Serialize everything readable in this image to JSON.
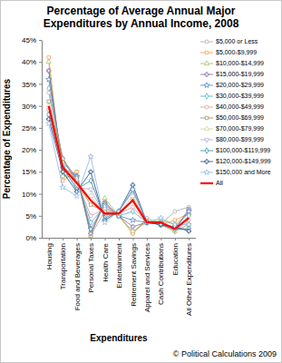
{
  "chart_data": {
    "type": "line",
    "title": "Percentage of Average Annual Major Expenditures by Annual Income, 2008",
    "x_label": "Expenditures",
    "y_label": "Percentage of Expenditures",
    "annotation": "© Political Calculations 2009",
    "categories": [
      "Housing",
      "Transportation",
      "Food and Beverages",
      "Personal Taxes",
      "Health Care",
      "Entertainment",
      "Retirement Savings",
      "Apparel and Services",
      "Cash Contributions",
      "Education",
      "All Other Expenditures"
    ],
    "ylim": [
      0,
      45
    ],
    "yticks": [
      {
        "value": 0,
        "label": "0%"
      },
      {
        "value": 5,
        "label": "5%"
      },
      {
        "value": 10,
        "label": "10%"
      },
      {
        "value": 15,
        "label": "15%"
      },
      {
        "value": 20,
        "label": "20%"
      },
      {
        "value": 25,
        "label": "25%"
      },
      {
        "value": 30,
        "label": "30%"
      },
      {
        "value": 35,
        "label": "35%"
      },
      {
        "value": 40,
        "label": "40%"
      },
      {
        "value": 45,
        "label": "45%"
      }
    ],
    "grid": false,
    "legend": "right",
    "series": [
      {
        "name": "$5,000 or Less",
        "color": "#a5a5a5",
        "marker": "circle",
        "line_style": "solid",
        "values": [
          38,
          14,
          15,
          0.5,
          6,
          5,
          1,
          4.5,
          3,
          6,
          7
        ]
      },
      {
        "name": "$5,000-$9,999",
        "color": "#f79646",
        "marker": "square",
        "line_style": "solid",
        "values": [
          41,
          13,
          15,
          0.5,
          8,
          5,
          1,
          4,
          3,
          4,
          5.5
        ]
      },
      {
        "name": "$10,000-$14,999",
        "color": "#9bbb59",
        "marker": "triangle",
        "line_style": "solid",
        "values": [
          40,
          14,
          14,
          0.5,
          9,
          5,
          1.5,
          3.5,
          4,
          3,
          5.5
        ]
      },
      {
        "name": "$15,000-$19,999",
        "color": "#8064a2",
        "marker": "cross",
        "line_style": "solid",
        "values": [
          38,
          16,
          14,
          1,
          8,
          5,
          2.5,
          3.5,
          3.5,
          2,
          6.5
        ]
      },
      {
        "name": "$20,000-$29,999",
        "color": "#4f81bd",
        "marker": "star",
        "line_style": "solid",
        "values": [
          36,
          17,
          14,
          2,
          7.5,
          5,
          4,
          3.5,
          3,
          2,
          6
        ]
      },
      {
        "name": "$30,000-$39,999",
        "color": "#4bacc6",
        "marker": "diamond",
        "line_style": "solid",
        "values": [
          34,
          18,
          13.5,
          3.5,
          7,
          5,
          6,
          3.5,
          3,
          1.5,
          5
        ]
      },
      {
        "name": "$40,000-$49,999",
        "color": "#d99694",
        "marker": "circle",
        "line_style": "solid",
        "values": [
          33,
          18,
          13,
          5,
          6.5,
          5.5,
          7,
          3.5,
          3,
          1.5,
          4
        ]
      },
      {
        "name": "$50,000-$69,999",
        "color": "#948a54",
        "marker": "square",
        "line_style": "solid",
        "values": [
          31,
          18,
          12.5,
          7.5,
          6,
          5.5,
          8.5,
          3.5,
          3,
          1.5,
          3
        ]
      },
      {
        "name": "$70,000-$79,999",
        "color": "#c3d69b",
        "marker": "triangle",
        "line_style": "solid",
        "values": [
          30,
          17,
          12,
          9.5,
          5.5,
          5.5,
          9.5,
          3.5,
          3,
          1.5,
          3
        ]
      },
      {
        "name": "$80,000-$99,999",
        "color": "#b3a2c7",
        "marker": "wye",
        "line_style": "solid",
        "values": [
          29,
          16.5,
          11.5,
          11,
          5,
          6,
          10.5,
          3.5,
          3,
          2,
          2
        ]
      },
      {
        "name": "$100,000-$119,999",
        "color": "#31859c",
        "marker": "diamond",
        "line_style": "solid",
        "values": [
          28,
          16,
          11,
          13,
          4.5,
          6,
          11,
          3.5,
          3,
          2,
          2
        ]
      },
      {
        "name": "$120,000-$149,999",
        "color": "#1f497d",
        "marker": "cross",
        "line_style": "solid",
        "values": [
          27,
          15,
          10.5,
          15,
          4,
          6,
          12,
          3.5,
          3,
          2.5,
          1.5
        ]
      },
      {
        "name": "$150,000 and More",
        "color": "#8db3e2",
        "marker": "star",
        "line_style": "solid",
        "values": [
          26,
          11.5,
          9.5,
          18.5,
          3.5,
          6,
          11,
          3.5,
          4.5,
          3,
          3
        ]
      },
      {
        "name": "All",
        "color": "#ff0000",
        "marker": "none",
        "line_style": "thick",
        "values": [
          30,
          16,
          12.5,
          8.5,
          5.5,
          5.5,
          8.5,
          3.5,
          3.5,
          2,
          4.5
        ]
      }
    ]
  }
}
